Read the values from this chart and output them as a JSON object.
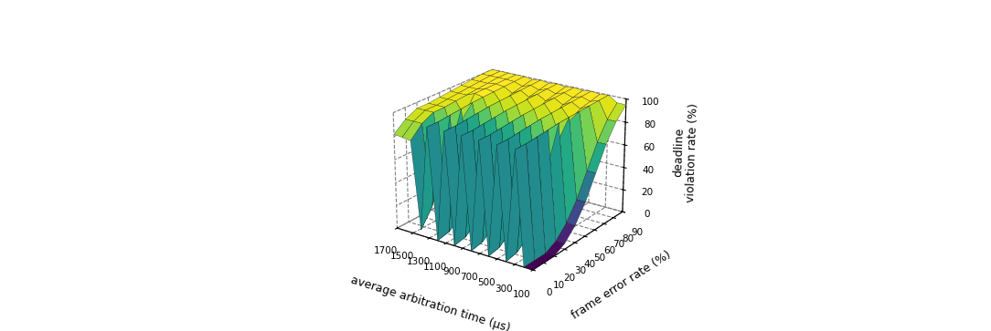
{
  "xlabel": "average arbitration time (µs)",
  "ylabel": "frame error rate (%)",
  "zlabel": "deadline\nviolation rate (%)",
  "x_ticks": [
    100,
    300,
    500,
    700,
    900,
    1100,
    1300,
    1500,
    1700
  ],
  "y_ticks": [
    0,
    10,
    20,
    30,
    40,
    50,
    60,
    70,
    80,
    90
  ],
  "zlim": [
    0,
    100
  ],
  "z_ticks": [
    0,
    20,
    40,
    60,
    80,
    100
  ],
  "colormap": "viridis",
  "figsize": [
    10.84,
    3.63
  ],
  "dpi": 100,
  "elev": 22,
  "azim": -55,
  "background_color": "#ffffff"
}
